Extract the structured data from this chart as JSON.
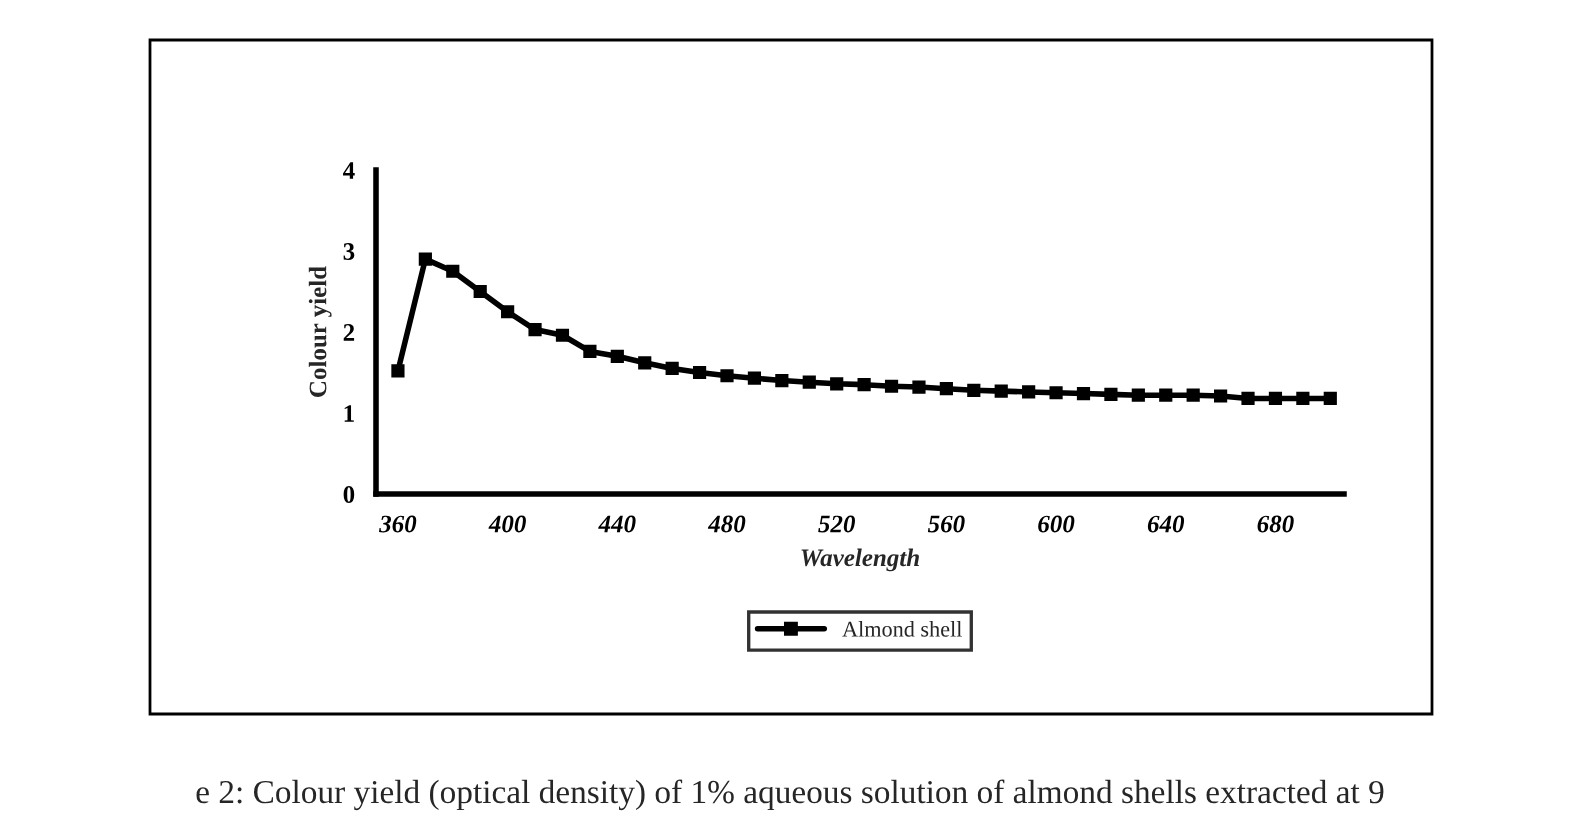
{
  "chart_data": {
    "type": "line",
    "xlabel": "Wavelength",
    "ylabel": "Colour yield",
    "x": [
      360,
      370,
      380,
      390,
      400,
      410,
      420,
      430,
      440,
      450,
      460,
      470,
      480,
      490,
      500,
      510,
      520,
      530,
      540,
      550,
      560,
      570,
      580,
      590,
      600,
      610,
      620,
      630,
      640,
      650,
      660,
      670,
      680,
      690,
      700
    ],
    "series": [
      {
        "name": "Almond shell",
        "color": "#000000",
        "values": [
          1.52,
          2.9,
          2.75,
          2.5,
          2.25,
          2.03,
          1.96,
          1.76,
          1.7,
          1.62,
          1.55,
          1.5,
          1.46,
          1.43,
          1.4,
          1.38,
          1.36,
          1.35,
          1.33,
          1.32,
          1.3,
          1.28,
          1.27,
          1.26,
          1.25,
          1.24,
          1.23,
          1.22,
          1.22,
          1.22,
          1.21,
          1.18,
          1.18,
          1.18,
          1.18
        ]
      }
    ],
    "xlim": [
      352,
      705
    ],
    "xticks": [
      360,
      400,
      440,
      480,
      520,
      560,
      600,
      640,
      680
    ],
    "ylim": [
      0,
      4
    ],
    "yticks": [
      0,
      1,
      2,
      3,
      4
    ],
    "grid": false,
    "legend": "bottom",
    "marker": "square",
    "line_style": "solid",
    "annotations": [
      "e 2: Colour yield (optical density) of 1% aqueous solution of almond shells extracted at 9"
    ]
  }
}
